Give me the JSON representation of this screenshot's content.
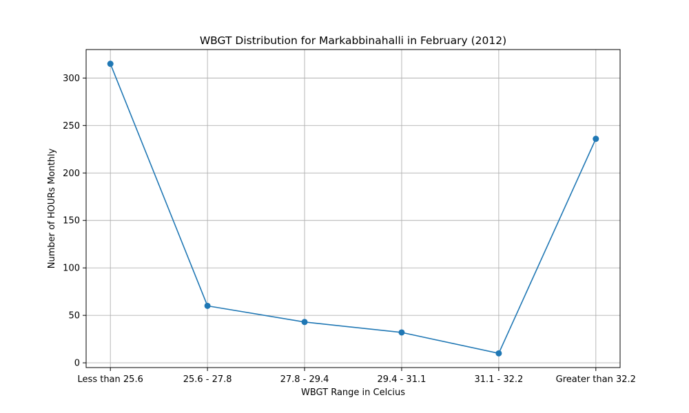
{
  "chart_data": {
    "type": "line",
    "title": "WBGT Distribution for Markabbinahalli in February (2012)",
    "xlabel": "WBGT Range in Celcius",
    "ylabel": "Number of HOURs Monthly",
    "categories": [
      "Less than 25.6",
      "25.6 - 27.8",
      "27.8 - 29.4",
      "29.4 - 31.1",
      "31.1 - 32.2",
      "Greater than 32.2"
    ],
    "values": [
      315,
      60,
      43,
      32,
      10,
      236
    ],
    "ylim": [
      -5,
      330
    ],
    "yticks": [
      0,
      50,
      100,
      150,
      200,
      250,
      300
    ],
    "grid": true,
    "marker": "circle",
    "color": "#1f77b4"
  }
}
